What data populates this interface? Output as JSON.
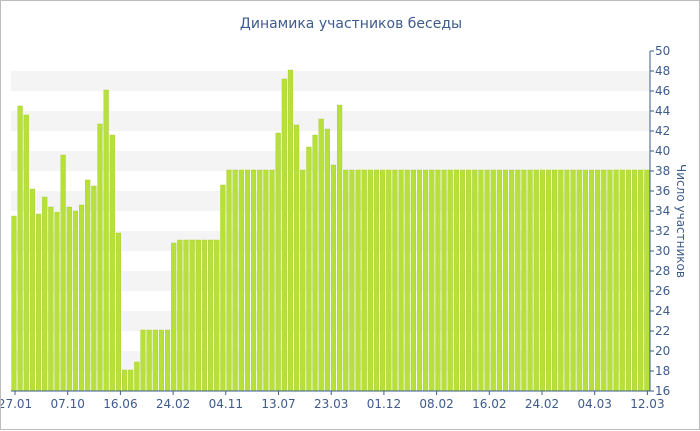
{
  "colors": {
    "bar": "#b8e03a",
    "bar_stroke": "#a2cc24",
    "band": "#f4f4f4",
    "axis": "#3e5b8c",
    "text": "#3e5b8c"
  },
  "chart_data": {
    "type": "bar",
    "title": "Динамика участников беседы",
    "xlabel": "",
    "ylabel": "Число участников",
    "ylim": [
      16,
      50
    ],
    "yticks": [
      16,
      18,
      20,
      22,
      24,
      26,
      28,
      30,
      32,
      34,
      36,
      38,
      40,
      42,
      44,
      46,
      48,
      50
    ],
    "grid": "alternating-bands",
    "xtick_labels": [
      "27.01",
      "07.10",
      "16.06",
      "24.02",
      "04.11",
      "13.07",
      "23.03",
      "01.12",
      "08.02",
      "16.02",
      "24.02",
      "04.03",
      "12.03"
    ],
    "values": [
      33.5,
      44.5,
      43.6,
      36.2,
      33.7,
      35.4,
      34.4,
      33.9,
      39.6,
      34.4,
      34.0,
      34.6,
      37.1,
      36.5,
      42.7,
      46.1,
      41.6,
      31.8,
      18.1,
      18.1,
      18.9,
      22.1,
      22.1,
      22.1,
      22.1,
      22.1,
      30.8,
      31.1,
      31.1,
      31.1,
      31.1,
      31.1,
      31.1,
      31.1,
      36.6,
      38.1,
      38.1,
      38.1,
      38.1,
      38.1,
      38.1,
      38.1,
      38.1,
      41.8,
      47.2,
      48.1,
      42.6,
      38.1,
      40.4,
      41.6,
      43.2,
      42.2,
      38.6,
      44.6,
      38.1,
      38.1,
      38.1,
      38.1,
      38.1,
      38.1,
      38.1,
      38.1,
      38.1,
      38.1,
      38.1,
      38.1,
      38.1,
      38.1,
      38.1,
      38.1,
      38.1,
      38.1,
      38.1,
      38.1,
      38.1,
      38.1,
      38.1,
      38.1,
      38.1,
      38.1,
      38.1,
      38.1,
      38.1,
      38.1,
      38.1,
      38.1,
      38.1,
      38.1,
      38.1,
      38.1,
      38.1,
      38.1,
      38.1,
      38.1,
      38.1,
      38.1,
      38.1,
      38.1,
      38.1,
      38.1,
      38.1,
      38.1,
      38.1,
      38.1
    ]
  }
}
